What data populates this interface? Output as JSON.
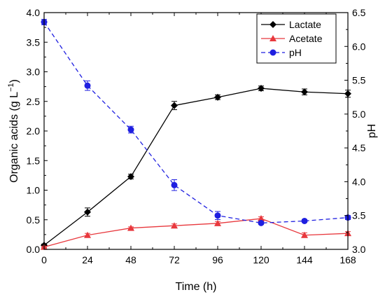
{
  "chart_data": {
    "type": "line",
    "title": "",
    "xlabel": "Time (h)",
    "ylabel_left_prefix": "Organic acids (g L",
    "ylabel_left_sup": "−1",
    "ylabel_left_suffix": ")",
    "ylabel_right": "pH",
    "xlim": [
      0,
      168
    ],
    "ylim_left": [
      0.0,
      4.0
    ],
    "ylim_right": [
      3.0,
      6.5
    ],
    "x_ticks": [
      "0",
      "24",
      "48",
      "72",
      "96",
      "120",
      "144",
      "168"
    ],
    "y_left_ticks": [
      "0.0",
      "0.5",
      "1.0",
      "1.5",
      "2.0",
      "2.5",
      "3.0",
      "3.5",
      "4.0"
    ],
    "y_right_ticks": [
      "3.0",
      "3.5",
      "4.0",
      "4.5",
      "5.0",
      "5.5",
      "6.0",
      "6.5"
    ],
    "grid": false,
    "legend_position": "top-right",
    "x": [
      0,
      24,
      48,
      72,
      96,
      120,
      144,
      168
    ],
    "series": [
      {
        "name": "Lactate",
        "axis": "left",
        "color": "#000000",
        "marker": "diamond",
        "line": "solid",
        "values": [
          0.07,
          0.63,
          1.23,
          2.43,
          2.57,
          2.72,
          2.66,
          2.63
        ],
        "errors": [
          0.02,
          0.07,
          0.04,
          0.07,
          0.04,
          0.04,
          0.05,
          0.06
        ]
      },
      {
        "name": "Acetate",
        "axis": "left",
        "color": "#e8383d",
        "marker": "triangle",
        "line": "solid",
        "values": [
          0.04,
          0.24,
          0.36,
          0.4,
          0.44,
          0.52,
          0.24,
          0.27
        ],
        "errors": [
          0.01,
          0.03,
          0.02,
          0.03,
          0.03,
          0.03,
          0.04,
          0.03
        ]
      },
      {
        "name": "pH",
        "axis": "right",
        "color": "#1f1fe0",
        "marker": "circle",
        "line": "dashed",
        "values": [
          6.36,
          5.42,
          4.77,
          3.95,
          3.5,
          3.39,
          3.42,
          3.47
        ],
        "errors": [
          0.04,
          0.07,
          0.05,
          0.08,
          0.06,
          0.02,
          0.02,
          0.03
        ]
      }
    ]
  }
}
